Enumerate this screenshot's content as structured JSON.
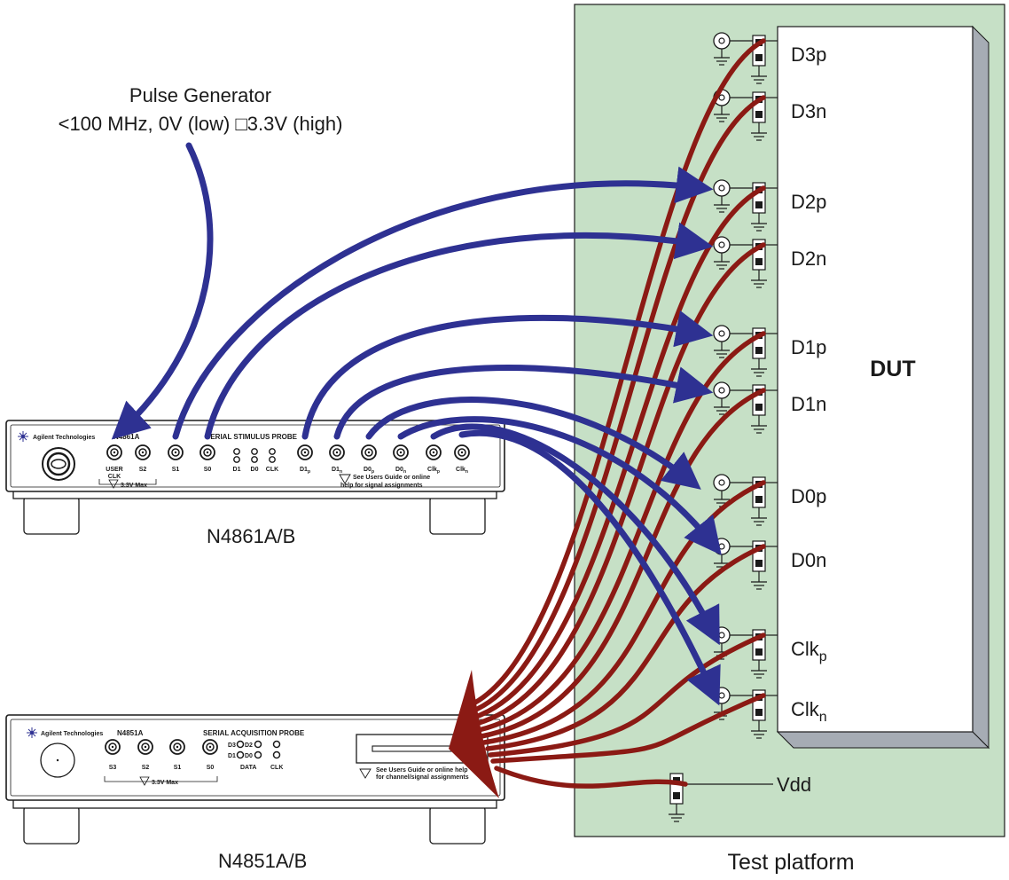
{
  "pulse_generator": {
    "title": "Pulse Generator",
    "spec": "<100 MHz, 0V (low) □3.3V (high)"
  },
  "stimulus_probe": {
    "vendor": "Agilent Technologies",
    "model": "N4861A",
    "product_name": "SERIAL STIMULUS PROBE",
    "caption": "N4861A/B",
    "ports": [
      {
        "label": "USER CLK",
        "line1": "USER",
        "line2": "CLK"
      },
      {
        "label": "S2"
      },
      {
        "label": "S1"
      },
      {
        "label": "S0"
      },
      {
        "label": "D1"
      },
      {
        "label": "D0"
      },
      {
        "label": "CLK"
      },
      {
        "label": "D1p",
        "base": "D1",
        "sub": "p"
      },
      {
        "label": "D1n",
        "base": "D1",
        "sub": "n"
      },
      {
        "label": "D0p",
        "base": "D0",
        "sub": "p"
      },
      {
        "label": "D0n",
        "base": "D0",
        "sub": "n"
      },
      {
        "label": "Clkp",
        "base": "Clk",
        "sub": "p"
      },
      {
        "label": "Clkn",
        "base": "Clk",
        "sub": "n"
      }
    ],
    "max_voltage": "3.3V Max",
    "note_line1": "See Users Guide or online",
    "note_line2": "help for signal assignments"
  },
  "acquisition_probe": {
    "vendor": "Agilent Technologies",
    "model": "N4851A",
    "product_name": "SERIAL ACQUISITION PROBE",
    "caption": "N4851A/B",
    "ports": [
      "S3",
      "S2",
      "S1",
      "S0"
    ],
    "data_labels": [
      "D3",
      "D2",
      "D1",
      "D0"
    ],
    "data_caption": "DATA",
    "clk_caption": "CLK",
    "max_voltage": "3.3V Max",
    "note_line1": "See Users Guide or online help",
    "note_line2": "for channel/signal assignments"
  },
  "test_platform": {
    "caption": "Test platform",
    "dut_label": "DUT",
    "vdd_label": "Vdd",
    "pins": [
      {
        "base": "D3p",
        "sub": ""
      },
      {
        "base": "D3n",
        "sub": ""
      },
      {
        "base": "D2p",
        "sub": ""
      },
      {
        "base": "D2n",
        "sub": ""
      },
      {
        "base": "D1p",
        "sub": ""
      },
      {
        "base": "D1n",
        "sub": ""
      },
      {
        "base": "D0p",
        "sub": ""
      },
      {
        "base": "D0n",
        "sub": ""
      },
      {
        "base": "Clk",
        "sub": "p"
      },
      {
        "base": "Clk",
        "sub": "n"
      }
    ]
  },
  "colors": {
    "platform_fill": "#c6e0c6",
    "dut_fill": "#ffffff",
    "dut_shadow": "#a6acb4",
    "stimulus_wire": "#2e3192",
    "acquisition_wire": "#8b1a14",
    "outline": "#1a1a1a"
  }
}
